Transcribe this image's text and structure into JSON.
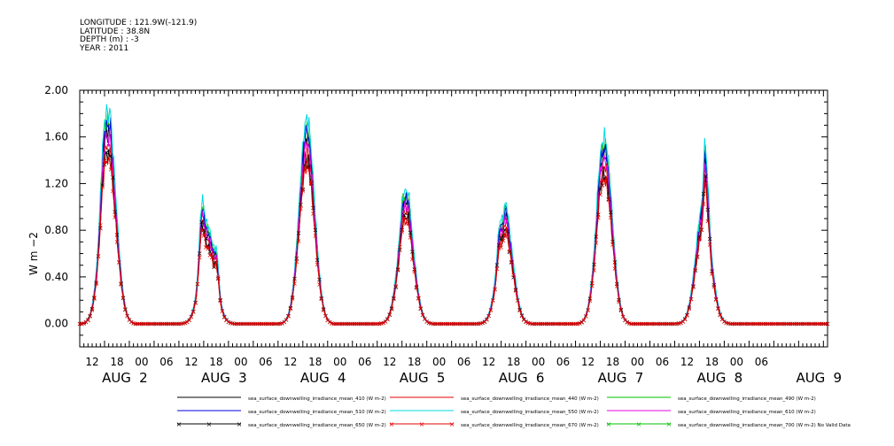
{
  "header": {
    "lines": [
      "LONGITUDE : 121.9W(-121.9)",
      "LATITUDE : 38.8N",
      "DEPTH (m) : -3",
      "YEAR : 2011"
    ]
  },
  "chart_data": {
    "type": "line",
    "title": "",
    "xlabel": "",
    "ylabel": "W m-2",
    "ylim": [
      -0.2,
      2.0
    ],
    "y_ticks": [
      "0.00",
      "0.40",
      "0.80",
      "1.20",
      "1.60",
      "2.00"
    ],
    "x_range_hours": [
      0,
      181
    ],
    "x_tick_labels": [
      "12",
      "18",
      "00",
      "06",
      "12",
      "18",
      "00",
      "06",
      "12",
      "18",
      "00",
      "06",
      "12",
      "18",
      "00",
      "06",
      "12",
      "18",
      "00",
      "06",
      "12",
      "18",
      "00",
      "06",
      "12",
      "18",
      "00",
      "06"
    ],
    "date_labels": [
      "AUG 2",
      "AUG 3",
      "AUG 4",
      "AUG 5",
      "AUG 6",
      "AUG 7",
      "AUG 8",
      "AUG 9"
    ],
    "days": [
      {
        "peak": 1.55,
        "bumps": [
          [
            -1.2,
            0.25,
            1.0
          ],
          [
            0.5,
            0.12,
            0.35
          ]
        ]
      },
      {
        "peak": 0.75,
        "bumps": [
          [
            -1.5,
            0.4,
            0.8
          ],
          [
            2.2,
            0.2,
            0.6
          ]
        ]
      },
      {
        "peak": 1.55,
        "bumps": [
          [
            -0.5,
            0.05,
            2.0
          ]
        ]
      },
      {
        "peak": 0.95,
        "bumps": [
          [
            -0.8,
            0.12,
            0.8
          ],
          [
            0.6,
            0.1,
            0.6
          ]
        ]
      },
      {
        "peak": 0.85,
        "bumps": [
          [
            -1.5,
            0.15,
            0.6
          ],
          [
            0.2,
            0.1,
            0.5
          ]
        ]
      },
      {
        "peak": 1.45,
        "bumps": [
          [
            -1.3,
            0.08,
            0.6
          ]
        ]
      },
      {
        "peak": 0.95,
        "bumps": [
          [
            0.4,
            0.5,
            0.5
          ],
          [
            1.2,
            0.2,
            0.4
          ]
        ]
      }
    ],
    "series": [
      {
        "name": "sea_surface_downwelling_irradiance_mean_410 (W m-2)",
        "color": "#000000",
        "scale": 1.0,
        "marker": false
      },
      {
        "name": "sea_surface_downwelling_irradiance_mean_440 (W m-2)",
        "color": "#e00000",
        "scale": 0.93,
        "marker": false
      },
      {
        "name": "sea_surface_downwelling_irradiance_mean_490 (W m-2)",
        "color": "#00c000",
        "scale": 1.06,
        "marker": false
      },
      {
        "name": "sea_surface_downwelling_irradiance_mean_510 (W m-2)",
        "color": "#0000e0",
        "scale": 1.03,
        "marker": false
      },
      {
        "name": "sea_surface_downwelling_irradiance_mean_550 (W m-2)",
        "color": "#00d8e0",
        "scale": 1.1,
        "marker": false
      },
      {
        "name": "sea_surface_downwelling_irradiance_mean_610 (W m-2)",
        "color": "#e000e0",
        "scale": 0.97,
        "marker": false
      },
      {
        "name": "sea_surface_downwelling_irradiance_mean_650 (W m-2)",
        "color": "#000000",
        "scale": 0.88,
        "marker": true
      },
      {
        "name": "sea_surface_downwelling_irradiance_mean_670 (W m-2)",
        "color": "#e00000",
        "scale": 0.85,
        "marker": true
      },
      {
        "name": "sea_surface_downwelling_irradiance_mean_700 (W m-2) No Valid Data",
        "color": "#00c000",
        "scale": 0,
        "marker": true
      }
    ]
  }
}
